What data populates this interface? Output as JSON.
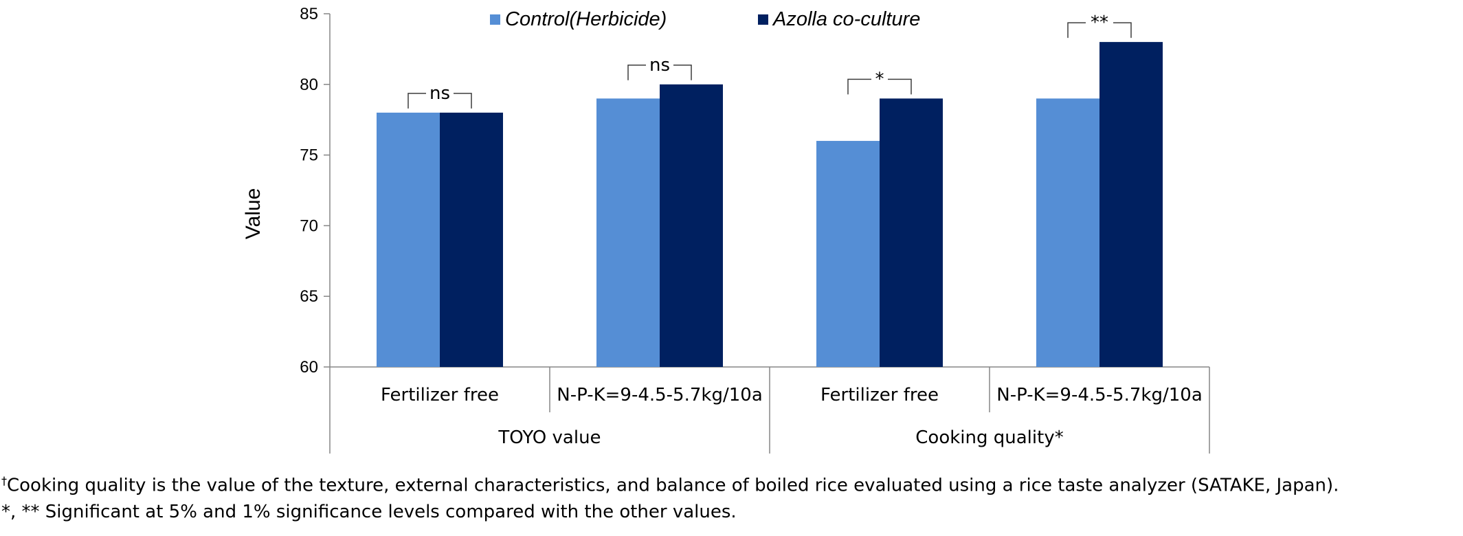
{
  "chart_data": {
    "type": "bar",
    "xlabel": "",
    "ylabel": "Value",
    "ylim": [
      60,
      85
    ],
    "yticks": [
      "60",
      "65",
      "70",
      "75",
      "80",
      "85"
    ],
    "grid": false,
    "legend_position": "top",
    "colors": [
      "#558ED5",
      "#002060"
    ],
    "categories": [
      "Fertilizer free",
      "N-P-K=9-4.5-5.7kg/10a",
      "Fertilizer free",
      "N-P-K=9-4.5-5.7kg/10a"
    ],
    "groups": [
      {
        "label": "TOYO value",
        "span": [
          0,
          1
        ]
      },
      {
        "label": "Cooking quality*",
        "span": [
          2,
          3
        ]
      }
    ],
    "series": [
      {
        "name": "Control(Herbicide)",
        "values": [
          78,
          79,
          76,
          79
        ]
      },
      {
        "name": "Azolla co-culture",
        "values": [
          78,
          80,
          79,
          83
        ]
      }
    ],
    "significance": [
      "ns",
      "ns",
      "*",
      "**"
    ]
  },
  "footnotes": {
    "dagger": "†",
    "line1": "Cooking quality is the value of the texture, external characteristics, and balance of boiled rice evaluated using a rice taste analyzer (SATAKE, Japan).",
    "line2": "*, ** Significant at 5% and 1% significance levels compared with the other values."
  }
}
